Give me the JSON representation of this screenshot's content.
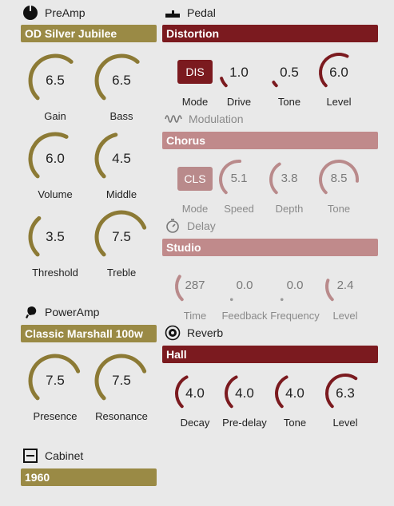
{
  "preamp": {
    "title": "PreAmp",
    "model": "OD Silver Jubilee",
    "knobs": [
      {
        "label": "Gain",
        "value": "6.5",
        "fraction": 0.65
      },
      {
        "label": "Bass",
        "value": "6.5",
        "fraction": 0.65
      },
      {
        "label": "Volume",
        "value": "6.0",
        "fraction": 0.6
      },
      {
        "label": "Middle",
        "value": "4.5",
        "fraction": 0.45
      },
      {
        "label": "Threshold",
        "value": "3.5",
        "fraction": 0.35
      },
      {
        "label": "Treble",
        "value": "7.5",
        "fraction": 0.75
      }
    ]
  },
  "poweramp": {
    "title": "PowerAmp",
    "model": "Classic Marshall 100w",
    "knobs": [
      {
        "label": "Presence",
        "value": "7.5",
        "fraction": 0.75
      },
      {
        "label": "Resonance",
        "value": "7.5",
        "fraction": 0.75
      }
    ]
  },
  "cabinet": {
    "title": "Cabinet",
    "model": "1960"
  },
  "pedal": {
    "title": "Pedal",
    "effect": "Distortion",
    "mode_button": "DIS",
    "mode_label": "Mode",
    "knobs": [
      {
        "label": "Drive",
        "value": "1.0",
        "fraction": 0.1
      },
      {
        "label": "Tone",
        "value": "0.5",
        "fraction": 0.05
      },
      {
        "label": "Level",
        "value": "6.0",
        "fraction": 0.6
      }
    ]
  },
  "modulation": {
    "title": "Modulation",
    "effect": "Chorus",
    "mode_button": "CLS",
    "mode_label": "Mode",
    "knobs": [
      {
        "label": "Speed",
        "value": "5.1",
        "fraction": 0.51
      },
      {
        "label": "Depth",
        "value": "3.8",
        "fraction": 0.38
      },
      {
        "label": "Tone",
        "value": "8.5",
        "fraction": 0.85
      }
    ]
  },
  "delay": {
    "title": "Delay",
    "effect": "Studio",
    "knobs": [
      {
        "label": "Time",
        "value": "287",
        "fraction": 0.29
      },
      {
        "label": "Feedback",
        "value": "0.0",
        "fraction": 0.0
      },
      {
        "label": "Frequency",
        "value": "0.0",
        "fraction": 0.0
      },
      {
        "label": "Level",
        "value": "2.4",
        "fraction": 0.24
      }
    ]
  },
  "reverb": {
    "title": "Reverb",
    "effect": "Hall",
    "knobs": [
      {
        "label": "Decay",
        "value": "4.0",
        "fraction": 0.4
      },
      {
        "label": "Pre-delay",
        "value": "4.0",
        "fraction": 0.4
      },
      {
        "label": "Tone",
        "value": "4.0",
        "fraction": 0.4
      },
      {
        "label": "Level",
        "value": "6.3",
        "fraction": 0.63
      }
    ]
  },
  "colors": {
    "gold": "#8c7a35",
    "red": "#7b1a1f",
    "pink": "#b98a8b",
    "pink_light": "#d9b3b4"
  }
}
